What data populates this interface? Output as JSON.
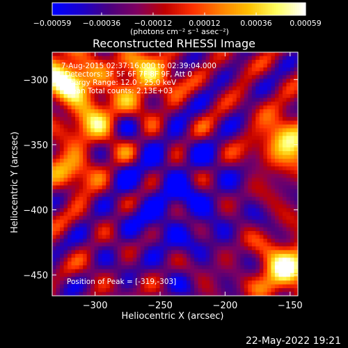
{
  "chart_data": {
    "type": "heatmap",
    "title": "Reconstructed RHESSI Image",
    "xlabel": "Heliocentric X (arcsec)",
    "ylabel": "Heliocentric Y (arcsec)",
    "xlim": [
      -333,
      -144
    ],
    "ylim": [
      -466,
      -279
    ],
    "xticks": [
      {
        "value": -300,
        "label": "−300"
      },
      {
        "value": -250,
        "label": "−250"
      },
      {
        "value": -200,
        "label": "−200"
      },
      {
        "value": -150,
        "label": "−150"
      }
    ],
    "yticks": [
      {
        "value": -300,
        "label": "−300"
      },
      {
        "value": -350,
        "label": "−350"
      },
      {
        "value": -400,
        "label": "−400"
      },
      {
        "value": -450,
        "label": "−450"
      }
    ],
    "colorbar": {
      "min": -0.00059,
      "max": 0.00059,
      "ticks": [
        {
          "value": -0.00059,
          "label": "−0.00059"
        },
        {
          "value": -0.00036,
          "label": "−0.00036"
        },
        {
          "value": -0.00012,
          "label": "−0.00012"
        },
        {
          "value": 0.00012,
          "label": "0.00012"
        },
        {
          "value": 0.00036,
          "label": "0.00036"
        },
        {
          "value": 0.00059,
          "label": "0.00059"
        }
      ],
      "unit_label": "(photons cm⁻² s⁻¹ asec⁻²)",
      "colormap": [
        "#0000ff",
        "#1a00cc",
        "#4a0080",
        "#800060",
        "#c00000",
        "#ff3000",
        "#ff8000",
        "#ffc000",
        "#ffff60",
        "#ffffff"
      ]
    },
    "annotations": {
      "time_range": "7-Aug-2015 02:37:16.000 to 02:39:04.000",
      "detectors": "Detectors: 3F 5F 6F 7F 8F 9F, Att 0",
      "energy_range": "Energy Range: 12.0 - 25.0 keV",
      "method_counts": "Clean    Total counts: 2.13E+03",
      "peak_position": "Position of Peak = [-319,-303]"
    },
    "bright_regions": [
      {
        "name": "top-left",
        "x": -322,
        "y": -298,
        "level": 1.0
      },
      {
        "name": "top-center",
        "x": -262,
        "y": -297,
        "level": 0.75
      },
      {
        "name": "right-edge-upper",
        "x": -152,
        "y": -348,
        "level": 0.85
      },
      {
        "name": "bottom-right",
        "x": -152,
        "y": -445,
        "level": 0.95
      },
      {
        "name": "left-middle",
        "x": -318,
        "y": -370,
        "level": 0.55
      },
      {
        "name": "upper-left-band",
        "x": -300,
        "y": -330,
        "level": 0.6
      }
    ],
    "dark_region": {
      "name": "center-blue",
      "x": -240,
      "y": -395,
      "level": -0.8
    }
  },
  "footer": {
    "date": "22-May-2022 19:21"
  }
}
